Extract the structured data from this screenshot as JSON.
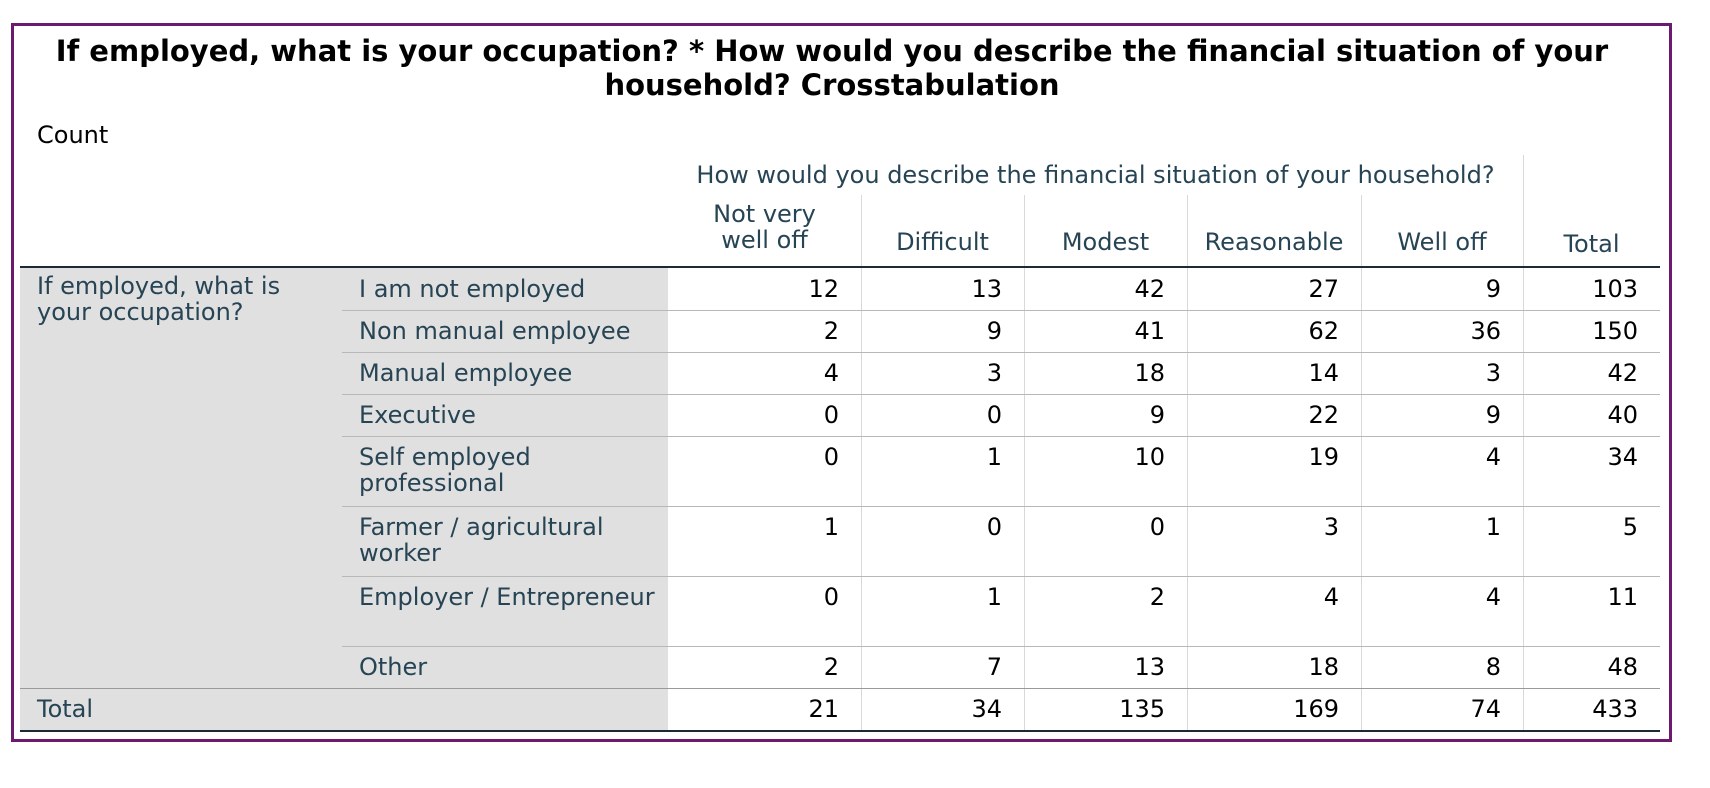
{
  "table": {
    "title_line1": "If employed, what is your occupation? * How would you describe the financial situation of your",
    "title_line2": "household? Crosstabulation",
    "statistic": "Count",
    "col_group_header": "How would you describe the financial situation of your household?",
    "col_headers": [
      "Not very well off",
      "Difficult",
      "Modest",
      "Reasonable",
      "Well off"
    ],
    "total_col_header": "Total",
    "row_group_label": "If employed, what is your occupation?",
    "rows": [
      {
        "label": "I am not employed",
        "values": [
          "12",
          "13",
          "42",
          "27",
          "9"
        ],
        "total": "103"
      },
      {
        "label": "Non manual employee",
        "values": [
          "2",
          "9",
          "41",
          "62",
          "36"
        ],
        "total": "150"
      },
      {
        "label": "Manual employee",
        "values": [
          "4",
          "3",
          "18",
          "14",
          "3"
        ],
        "total": "42"
      },
      {
        "label": "Executive",
        "values": [
          "0",
          "0",
          "9",
          "22",
          "9"
        ],
        "total": "40"
      },
      {
        "label": "Self employed professional",
        "values": [
          "0",
          "1",
          "10",
          "19",
          "4"
        ],
        "total": "34"
      },
      {
        "label": "Farmer / agricultural worker",
        "values": [
          "1",
          "0",
          "0",
          "3",
          "1"
        ],
        "total": "5"
      },
      {
        "label": "Employer / Entrepreneur",
        "values": [
          "0",
          "1",
          "2",
          "4",
          "4"
        ],
        "total": "11"
      },
      {
        "label": "Other",
        "values": [
          "2",
          "7",
          "13",
          "18",
          "8"
        ],
        "total": "48"
      }
    ],
    "total_row": {
      "label": "Total",
      "values": [
        "21",
        "34",
        "135",
        "169",
        "74"
      ],
      "total": "433"
    }
  }
}
